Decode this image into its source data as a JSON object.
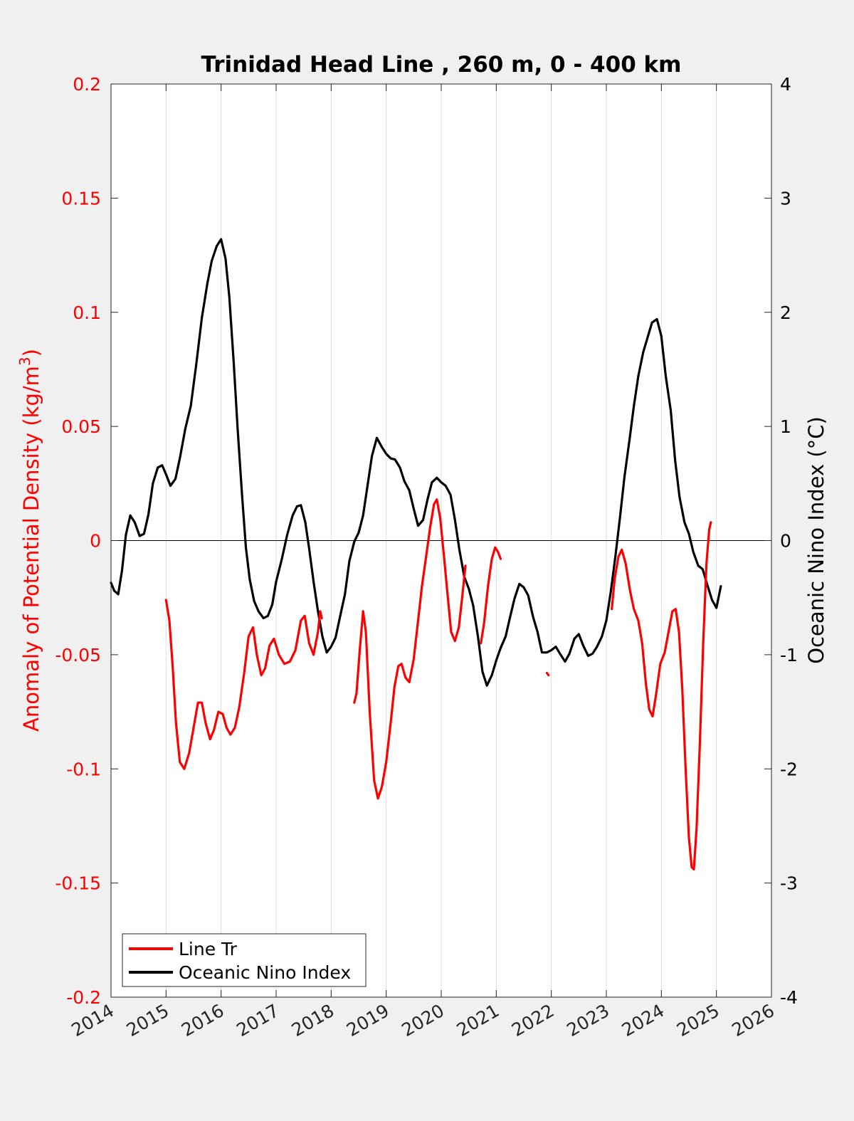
{
  "chart_data": {
    "type": "line",
    "title": "Trinidad Head Line , 260 m, 0 - 400 km",
    "xlabel": "",
    "ylabel_left": "Anomaly of Potential Density (kg/m",
    "ylabel_left_sup": "3",
    "ylabel_left_close": ")",
    "ylabel_right": "Oceanic Nino Index (°C)",
    "xlim": [
      2014,
      2026
    ],
    "ylim_left": [
      -0.2,
      0.2
    ],
    "ylim_right": [
      -4,
      4
    ],
    "x_ticks": [
      "2014",
      "2015",
      "2016",
      "2017",
      "2018",
      "2019",
      "2020",
      "2021",
      "2022",
      "2023",
      "2024",
      "2025",
      "2026"
    ],
    "y_ticks_left": [
      "-0.2",
      "-0.15",
      "-0.1",
      "-0.05",
      "0",
      "0.05",
      "0.1",
      "0.15",
      "0.2"
    ],
    "y_ticks_right": [
      "-4",
      "-3",
      "-2",
      "-1",
      "0",
      "1",
      "2",
      "3",
      "4"
    ],
    "grid": "vertical",
    "zero_line": true,
    "legend_position": "bottom-left",
    "colors": {
      "line_tr": "#ff0000",
      "oni": "#000000",
      "left_axis": "#ff0000",
      "right_axis": "#000000"
    },
    "series": [
      {
        "name": "Line Tr",
        "axis": "left",
        "segments": [
          [
            [
              2015.0,
              -0.026
            ],
            [
              2015.06,
              -0.035
            ],
            [
              2015.12,
              -0.055
            ],
            [
              2015.18,
              -0.08
            ],
            [
              2015.25,
              -0.097
            ],
            [
              2015.33,
              -0.1
            ],
            [
              2015.42,
              -0.093
            ],
            [
              2015.5,
              -0.082
            ],
            [
              2015.58,
              -0.071
            ],
            [
              2015.65,
              -0.071
            ],
            [
              2015.72,
              -0.08
            ],
            [
              2015.8,
              -0.087
            ],
            [
              2015.87,
              -0.083
            ],
            [
              2015.95,
              -0.075
            ],
            [
              2016.03,
              -0.076
            ],
            [
              2016.1,
              -0.082
            ],
            [
              2016.17,
              -0.085
            ],
            [
              2016.25,
              -0.082
            ],
            [
              2016.33,
              -0.073
            ],
            [
              2016.42,
              -0.058
            ],
            [
              2016.5,
              -0.042
            ],
            [
              2016.58,
              -0.038
            ],
            [
              2016.65,
              -0.05
            ],
            [
              2016.73,
              -0.059
            ],
            [
              2016.8,
              -0.056
            ],
            [
              2016.88,
              -0.046
            ],
            [
              2016.96,
              -0.043
            ],
            [
              2017.05,
              -0.05
            ],
            [
              2017.15,
              -0.054
            ],
            [
              2017.25,
              -0.053
            ],
            [
              2017.35,
              -0.048
            ],
            [
              2017.45,
              -0.035
            ],
            [
              2017.52,
              -0.033
            ],
            [
              2017.6,
              -0.045
            ],
            [
              2017.68,
              -0.05
            ],
            [
              2017.76,
              -0.04
            ],
            [
              2017.8,
              -0.031
            ],
            [
              2017.83,
              -0.034
            ]
          ],
          [
            [
              2018.42,
              -0.071
            ],
            [
              2018.46,
              -0.067
            ],
            [
              2018.52,
              -0.048
            ],
            [
              2018.58,
              -0.031
            ],
            [
              2018.63,
              -0.04
            ],
            [
              2018.7,
              -0.075
            ],
            [
              2018.78,
              -0.105
            ],
            [
              2018.85,
              -0.113
            ],
            [
              2018.92,
              -0.108
            ],
            [
              2019.0,
              -0.097
            ],
            [
              2019.08,
              -0.08
            ],
            [
              2019.15,
              -0.064
            ],
            [
              2019.22,
              -0.055
            ],
            [
              2019.28,
              -0.054
            ],
            [
              2019.35,
              -0.06
            ],
            [
              2019.42,
              -0.062
            ],
            [
              2019.5,
              -0.052
            ],
            [
              2019.58,
              -0.035
            ],
            [
              2019.65,
              -0.02
            ],
            [
              2019.72,
              -0.008
            ],
            [
              2019.8,
              0.006
            ],
            [
              2019.87,
              0.016
            ],
            [
              2019.92,
              0.018
            ],
            [
              2019.98,
              0.01
            ],
            [
              2020.05,
              -0.007
            ],
            [
              2020.12,
              -0.025
            ],
            [
              2020.18,
              -0.04
            ],
            [
              2020.25,
              -0.044
            ],
            [
              2020.32,
              -0.038
            ],
            [
              2020.38,
              -0.025
            ],
            [
              2020.44,
              -0.011
            ]
          ],
          [
            [
              2020.72,
              -0.045
            ],
            [
              2020.78,
              -0.036
            ],
            [
              2020.85,
              -0.02
            ],
            [
              2020.92,
              -0.008
            ],
            [
              2020.98,
              -0.003
            ],
            [
              2021.03,
              -0.005
            ],
            [
              2021.08,
              -0.008
            ]
          ],
          [
            [
              2021.92,
              -0.058
            ],
            [
              2021.95,
              -0.059
            ]
          ],
          [
            [
              2023.1,
              -0.03
            ],
            [
              2023.15,
              -0.017
            ],
            [
              2023.22,
              -0.007
            ],
            [
              2023.28,
              -0.004
            ],
            [
              2023.35,
              -0.01
            ],
            [
              2023.43,
              -0.022
            ],
            [
              2023.5,
              -0.03
            ],
            [
              2023.58,
              -0.035
            ],
            [
              2023.65,
              -0.045
            ],
            [
              2023.72,
              -0.063
            ],
            [
              2023.78,
              -0.074
            ],
            [
              2023.84,
              -0.077
            ],
            [
              2023.9,
              -0.068
            ],
            [
              2023.98,
              -0.054
            ],
            [
              2024.06,
              -0.049
            ],
            [
              2024.13,
              -0.04
            ],
            [
              2024.2,
              -0.031
            ],
            [
              2024.26,
              -0.03
            ],
            [
              2024.32,
              -0.04
            ],
            [
              2024.38,
              -0.065
            ],
            [
              2024.44,
              -0.1
            ],
            [
              2024.5,
              -0.13
            ],
            [
              2024.55,
              -0.143
            ],
            [
              2024.59,
              -0.144
            ],
            [
              2024.64,
              -0.126
            ],
            [
              2024.7,
              -0.088
            ],
            [
              2024.76,
              -0.045
            ],
            [
              2024.82,
              -0.01
            ],
            [
              2024.87,
              0.005
            ],
            [
              2024.9,
              0.008
            ]
          ]
        ]
      },
      {
        "name": "Oceanic Nino Index",
        "axis": "right",
        "points": [
          [
            2014.0,
            -0.37
          ],
          [
            2014.06,
            -0.44
          ],
          [
            2014.13,
            -0.47
          ],
          [
            2014.2,
            -0.26
          ],
          [
            2014.27,
            0.05
          ],
          [
            2014.35,
            0.22
          ],
          [
            2014.43,
            0.16
          ],
          [
            2014.52,
            0.04
          ],
          [
            2014.6,
            0.06
          ],
          [
            2014.68,
            0.23
          ],
          [
            2014.76,
            0.5
          ],
          [
            2014.85,
            0.64
          ],
          [
            2014.93,
            0.66
          ],
          [
            2015.0,
            0.58
          ],
          [
            2015.08,
            0.48
          ],
          [
            2015.17,
            0.54
          ],
          [
            2015.25,
            0.72
          ],
          [
            2015.35,
            0.98
          ],
          [
            2015.45,
            1.18
          ],
          [
            2015.55,
            1.55
          ],
          [
            2015.65,
            1.95
          ],
          [
            2015.75,
            2.25
          ],
          [
            2015.83,
            2.45
          ],
          [
            2015.92,
            2.58
          ],
          [
            2016.0,
            2.64
          ],
          [
            2016.08,
            2.47
          ],
          [
            2016.15,
            2.13
          ],
          [
            2016.23,
            1.55
          ],
          [
            2016.3,
            0.98
          ],
          [
            2016.38,
            0.4
          ],
          [
            2016.45,
            -0.06
          ],
          [
            2016.52,
            -0.34
          ],
          [
            2016.6,
            -0.53
          ],
          [
            2016.68,
            -0.62
          ],
          [
            2016.77,
            -0.68
          ],
          [
            2016.85,
            -0.66
          ],
          [
            2016.93,
            -0.56
          ],
          [
            2017.0,
            -0.36
          ],
          [
            2017.1,
            -0.17
          ],
          [
            2017.2,
            0.05
          ],
          [
            2017.3,
            0.22
          ],
          [
            2017.38,
            0.3
          ],
          [
            2017.45,
            0.31
          ],
          [
            2017.53,
            0.16
          ],
          [
            2017.6,
            -0.07
          ],
          [
            2017.68,
            -0.36
          ],
          [
            2017.76,
            -0.62
          ],
          [
            2017.84,
            -0.84
          ],
          [
            2017.92,
            -0.98
          ],
          [
            2018.0,
            -0.93
          ],
          [
            2018.08,
            -0.85
          ],
          [
            2018.16,
            -0.67
          ],
          [
            2018.25,
            -0.47
          ],
          [
            2018.33,
            -0.18
          ],
          [
            2018.42,
            -0.01
          ],
          [
            2018.5,
            0.07
          ],
          [
            2018.58,
            0.22
          ],
          [
            2018.66,
            0.48
          ],
          [
            2018.74,
            0.74
          ],
          [
            2018.83,
            0.9
          ],
          [
            2018.92,
            0.82
          ],
          [
            2019.0,
            0.76
          ],
          [
            2019.08,
            0.72
          ],
          [
            2019.16,
            0.71
          ],
          [
            2019.25,
            0.64
          ],
          [
            2019.33,
            0.52
          ],
          [
            2019.42,
            0.44
          ],
          [
            2019.5,
            0.28
          ],
          [
            2019.58,
            0.13
          ],
          [
            2019.67,
            0.18
          ],
          [
            2019.75,
            0.36
          ],
          [
            2019.83,
            0.51
          ],
          [
            2019.92,
            0.55
          ],
          [
            2020.0,
            0.51
          ],
          [
            2020.08,
            0.48
          ],
          [
            2020.17,
            0.4
          ],
          [
            2020.25,
            0.18
          ],
          [
            2020.33,
            -0.08
          ],
          [
            2020.42,
            -0.32
          ],
          [
            2020.5,
            -0.42
          ],
          [
            2020.58,
            -0.57
          ],
          [
            2020.67,
            -0.85
          ],
          [
            2020.75,
            -1.15
          ],
          [
            2020.83,
            -1.27
          ],
          [
            2020.92,
            -1.18
          ],
          [
            2021.0,
            -1.05
          ],
          [
            2021.08,
            -0.94
          ],
          [
            2021.17,
            -0.84
          ],
          [
            2021.25,
            -0.67
          ],
          [
            2021.33,
            -0.51
          ],
          [
            2021.42,
            -0.38
          ],
          [
            2021.5,
            -0.41
          ],
          [
            2021.58,
            -0.48
          ],
          [
            2021.67,
            -0.67
          ],
          [
            2021.75,
            -0.8
          ],
          [
            2021.83,
            -0.98
          ],
          [
            2021.92,
            -0.98
          ],
          [
            2022.0,
            -0.96
          ],
          [
            2022.08,
            -0.93
          ],
          [
            2022.17,
            -1.0
          ],
          [
            2022.25,
            -1.06
          ],
          [
            2022.33,
            -0.99
          ],
          [
            2022.42,
            -0.86
          ],
          [
            2022.5,
            -0.82
          ],
          [
            2022.58,
            -0.92
          ],
          [
            2022.67,
            -1.01
          ],
          [
            2022.75,
            -0.99
          ],
          [
            2022.83,
            -0.93
          ],
          [
            2022.92,
            -0.84
          ],
          [
            2023.0,
            -0.7
          ],
          [
            2023.08,
            -0.45
          ],
          [
            2023.17,
            -0.12
          ],
          [
            2023.25,
            0.21
          ],
          [
            2023.33,
            0.56
          ],
          [
            2023.42,
            0.88
          ],
          [
            2023.5,
            1.18
          ],
          [
            2023.58,
            1.44
          ],
          [
            2023.67,
            1.65
          ],
          [
            2023.75,
            1.78
          ],
          [
            2023.83,
            1.91
          ],
          [
            2023.92,
            1.94
          ],
          [
            2024.0,
            1.79
          ],
          [
            2024.08,
            1.44
          ],
          [
            2024.17,
            1.14
          ],
          [
            2024.25,
            0.7
          ],
          [
            2024.33,
            0.38
          ],
          [
            2024.42,
            0.16
          ],
          [
            2024.5,
            0.06
          ],
          [
            2024.58,
            -0.1
          ],
          [
            2024.67,
            -0.22
          ],
          [
            2024.75,
            -0.25
          ],
          [
            2024.83,
            -0.38
          ],
          [
            2024.92,
            -0.52
          ],
          [
            2025.0,
            -0.59
          ],
          [
            2025.08,
            -0.4
          ]
        ]
      }
    ]
  }
}
